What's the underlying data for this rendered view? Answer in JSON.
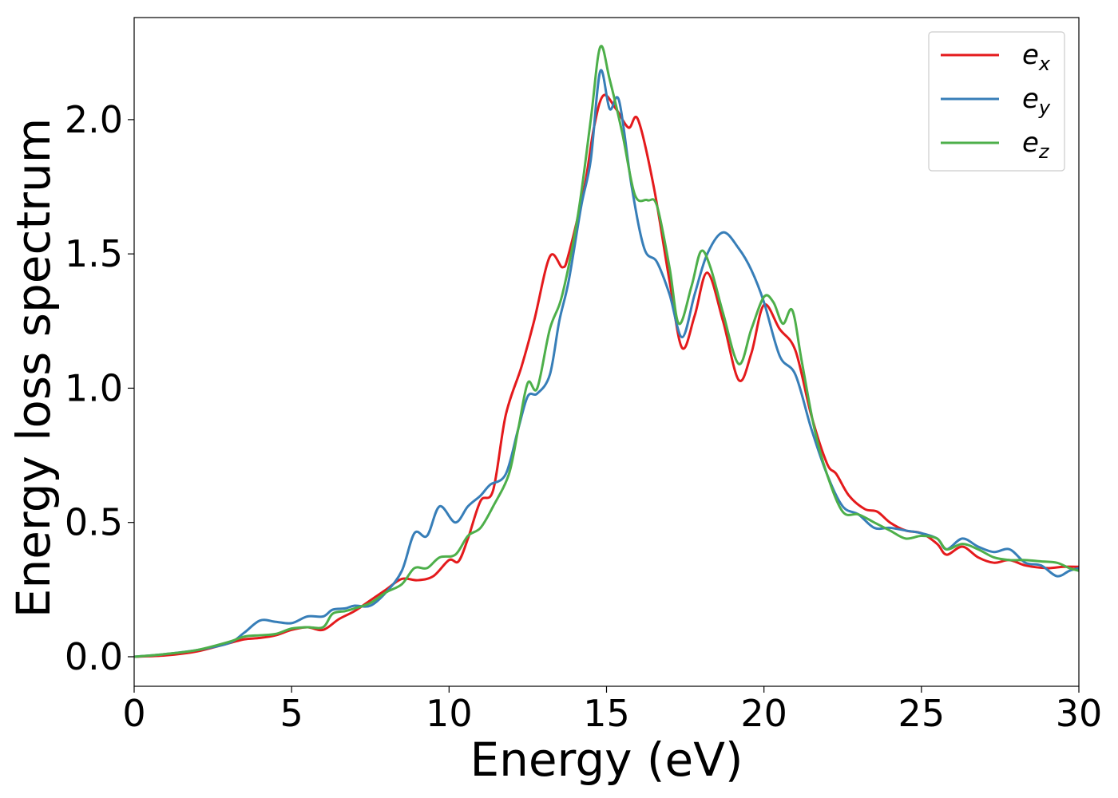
{
  "chart_data": {
    "type": "line",
    "title": "",
    "xlabel": "Energy (eV)",
    "ylabel": "Energy loss spectrum",
    "xlim": [
      0,
      30
    ],
    "ylim": [
      -0.11,
      2.38
    ],
    "xticks": [
      0,
      5,
      10,
      15,
      20,
      25,
      30
    ],
    "xtick_labels": [
      "0",
      "5",
      "10",
      "15",
      "20",
      "25",
      "30"
    ],
    "yticks": [
      0.0,
      0.5,
      1.0,
      1.5,
      2.0
    ],
    "ytick_labels": [
      "0.0",
      "0.5",
      "1.0",
      "1.5",
      "2.0"
    ],
    "grid": false,
    "legend_position": "top-right",
    "series": [
      {
        "name": "e",
        "sub": "x",
        "color": "#e41a1c",
        "points": [
          [
            0,
            0
          ],
          [
            1,
            0.005
          ],
          [
            2,
            0.02
          ],
          [
            3,
            0.05
          ],
          [
            3.5,
            0.065
          ],
          [
            4,
            0.07
          ],
          [
            4.5,
            0.08
          ],
          [
            5,
            0.1
          ],
          [
            5.5,
            0.11
          ],
          [
            6,
            0.1
          ],
          [
            6.5,
            0.14
          ],
          [
            7,
            0.17
          ],
          [
            7.5,
            0.21
          ],
          [
            8,
            0.25
          ],
          [
            8.5,
            0.29
          ],
          [
            9,
            0.285
          ],
          [
            9.5,
            0.3
          ],
          [
            10,
            0.36
          ],
          [
            10.3,
            0.355
          ],
          [
            10.6,
            0.44
          ],
          [
            11,
            0.58
          ],
          [
            11.4,
            0.62
          ],
          [
            11.8,
            0.9
          ],
          [
            12.3,
            1.08
          ],
          [
            12.7,
            1.25
          ],
          [
            13.2,
            1.49
          ],
          [
            13.6,
            1.45
          ],
          [
            13.8,
            1.5
          ],
          [
            14.3,
            1.75
          ],
          [
            14.6,
            1.97
          ],
          [
            14.9,
            2.09
          ],
          [
            15.3,
            2.04
          ],
          [
            15.7,
            1.97
          ],
          [
            16,
            2.0
          ],
          [
            16.5,
            1.75
          ],
          [
            17,
            1.4
          ],
          [
            17.4,
            1.15
          ],
          [
            17.8,
            1.27
          ],
          [
            18.2,
            1.43
          ],
          [
            18.7,
            1.25
          ],
          [
            19.2,
            1.03
          ],
          [
            19.6,
            1.13
          ],
          [
            20,
            1.31
          ],
          [
            20.5,
            1.22
          ],
          [
            21,
            1.14
          ],
          [
            21.5,
            0.9
          ],
          [
            22,
            0.72
          ],
          [
            22.3,
            0.68
          ],
          [
            22.7,
            0.6
          ],
          [
            23.2,
            0.55
          ],
          [
            23.6,
            0.54
          ],
          [
            24,
            0.5
          ],
          [
            24.5,
            0.47
          ],
          [
            25,
            0.46
          ],
          [
            25.5,
            0.42
          ],
          [
            25.8,
            0.38
          ],
          [
            26.3,
            0.41
          ],
          [
            26.8,
            0.37
          ],
          [
            27.3,
            0.35
          ],
          [
            27.8,
            0.36
          ],
          [
            28.3,
            0.34
          ],
          [
            29,
            0.33
          ],
          [
            29.5,
            0.335
          ],
          [
            30,
            0.335
          ]
        ]
      },
      {
        "name": "e",
        "sub": "y",
        "color": "#377eb8",
        "points": [
          [
            0,
            0
          ],
          [
            1,
            0.01
          ],
          [
            2,
            0.025
          ],
          [
            3,
            0.05
          ],
          [
            3.5,
            0.09
          ],
          [
            4,
            0.135
          ],
          [
            4.5,
            0.13
          ],
          [
            5,
            0.125
          ],
          [
            5.5,
            0.15
          ],
          [
            6,
            0.15
          ],
          [
            6.3,
            0.175
          ],
          [
            6.7,
            0.18
          ],
          [
            7,
            0.19
          ],
          [
            7.5,
            0.19
          ],
          [
            8,
            0.24
          ],
          [
            8.5,
            0.32
          ],
          [
            8.9,
            0.46
          ],
          [
            9.3,
            0.45
          ],
          [
            9.7,
            0.56
          ],
          [
            10.2,
            0.5
          ],
          [
            10.6,
            0.56
          ],
          [
            11,
            0.6
          ],
          [
            11.3,
            0.64
          ],
          [
            11.8,
            0.68
          ],
          [
            12.2,
            0.85
          ],
          [
            12.5,
            0.97
          ],
          [
            12.8,
            0.98
          ],
          [
            13.2,
            1.05
          ],
          [
            13.5,
            1.25
          ],
          [
            13.8,
            1.4
          ],
          [
            14.2,
            1.68
          ],
          [
            14.5,
            1.85
          ],
          [
            14.8,
            2.18
          ],
          [
            15.1,
            2.04
          ],
          [
            15.4,
            2.07
          ],
          [
            15.8,
            1.75
          ],
          [
            16.2,
            1.52
          ],
          [
            16.6,
            1.47
          ],
          [
            17,
            1.35
          ],
          [
            17.4,
            1.19
          ],
          [
            17.8,
            1.35
          ],
          [
            18.2,
            1.5
          ],
          [
            18.7,
            1.58
          ],
          [
            19.2,
            1.52
          ],
          [
            19.6,
            1.44
          ],
          [
            20,
            1.32
          ],
          [
            20.5,
            1.12
          ],
          [
            21,
            1.05
          ],
          [
            21.5,
            0.85
          ],
          [
            22,
            0.68
          ],
          [
            22.5,
            0.56
          ],
          [
            23,
            0.53
          ],
          [
            23.5,
            0.48
          ],
          [
            24,
            0.48
          ],
          [
            24.5,
            0.47
          ],
          [
            25,
            0.46
          ],
          [
            25.5,
            0.44
          ],
          [
            25.8,
            0.4
          ],
          [
            26.3,
            0.44
          ],
          [
            26.8,
            0.41
          ],
          [
            27.3,
            0.39
          ],
          [
            27.8,
            0.4
          ],
          [
            28.3,
            0.35
          ],
          [
            28.8,
            0.34
          ],
          [
            29.3,
            0.3
          ],
          [
            29.7,
            0.32
          ],
          [
            30,
            0.33
          ]
        ]
      },
      {
        "name": "e",
        "sub": "z",
        "color": "#4daf4a",
        "points": [
          [
            0,
            0
          ],
          [
            1,
            0.01
          ],
          [
            2,
            0.025
          ],
          [
            3,
            0.055
          ],
          [
            3.5,
            0.075
          ],
          [
            4,
            0.08
          ],
          [
            4.5,
            0.085
          ],
          [
            5,
            0.105
          ],
          [
            5.5,
            0.11
          ],
          [
            6,
            0.11
          ],
          [
            6.3,
            0.16
          ],
          [
            6.7,
            0.17
          ],
          [
            7,
            0.18
          ],
          [
            7.5,
            0.2
          ],
          [
            8,
            0.24
          ],
          [
            8.5,
            0.27
          ],
          [
            8.9,
            0.33
          ],
          [
            9.3,
            0.33
          ],
          [
            9.7,
            0.37
          ],
          [
            10.2,
            0.38
          ],
          [
            10.6,
            0.45
          ],
          [
            11,
            0.48
          ],
          [
            11.4,
            0.56
          ],
          [
            11.9,
            0.68
          ],
          [
            12.2,
            0.85
          ],
          [
            12.5,
            1.02
          ],
          [
            12.8,
            1.0
          ],
          [
            13.2,
            1.22
          ],
          [
            13.6,
            1.35
          ],
          [
            14.1,
            1.65
          ],
          [
            14.5,
            2.0
          ],
          [
            14.8,
            2.27
          ],
          [
            15.1,
            2.15
          ],
          [
            15.5,
            1.95
          ],
          [
            15.9,
            1.72
          ],
          [
            16.3,
            1.7
          ],
          [
            16.6,
            1.68
          ],
          [
            17,
            1.45
          ],
          [
            17.3,
            1.24
          ],
          [
            17.7,
            1.38
          ],
          [
            18,
            1.51
          ],
          [
            18.3,
            1.45
          ],
          [
            18.7,
            1.28
          ],
          [
            19.2,
            1.09
          ],
          [
            19.6,
            1.22
          ],
          [
            20,
            1.34
          ],
          [
            20.3,
            1.32
          ],
          [
            20.6,
            1.24
          ],
          [
            20.9,
            1.29
          ],
          [
            21.2,
            1.1
          ],
          [
            21.6,
            0.85
          ],
          [
            22,
            0.68
          ],
          [
            22.5,
            0.54
          ],
          [
            23,
            0.53
          ],
          [
            23.5,
            0.5
          ],
          [
            24,
            0.47
          ],
          [
            24.5,
            0.44
          ],
          [
            25,
            0.45
          ],
          [
            25.5,
            0.44
          ],
          [
            25.8,
            0.4
          ],
          [
            26.3,
            0.42
          ],
          [
            26.8,
            0.4
          ],
          [
            27.3,
            0.37
          ],
          [
            27.8,
            0.36
          ],
          [
            28.3,
            0.36
          ],
          [
            28.8,
            0.355
          ],
          [
            29.3,
            0.35
          ],
          [
            29.7,
            0.33
          ],
          [
            30,
            0.32
          ]
        ]
      }
    ]
  }
}
